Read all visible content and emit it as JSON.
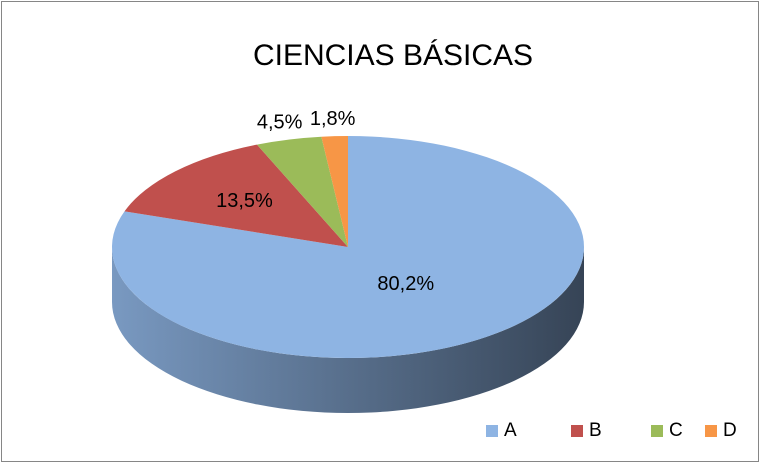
{
  "chart_data": {
    "type": "pie",
    "title": "CIENCIAS BÁSICAS",
    "categories": [
      "A",
      "B",
      "C",
      "D"
    ],
    "values": [
      80.2,
      13.5,
      4.5,
      1.8
    ],
    "value_labels": [
      "80,2%",
      "13,5%",
      "4,5%",
      "1,8%"
    ],
    "colors": [
      "#8eb4e3",
      "#c0504d",
      "#9bbb59",
      "#f79646"
    ],
    "three_d": true,
    "legend": "bottom-right"
  }
}
